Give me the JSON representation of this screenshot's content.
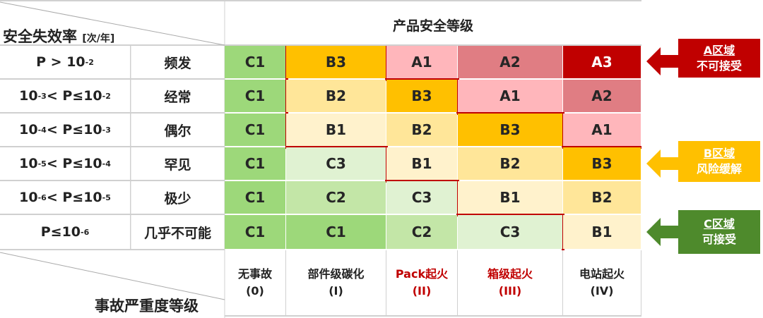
{
  "header": {
    "row_axis": "安全失效率",
    "row_unit": "[次/年]",
    "col_axis": "产品安全等级",
    "sev_axis": "事故严重度等级"
  },
  "rows": [
    {
      "range": [
        "P > 10",
        "-2",
        "",
        ""
      ],
      "label": "频发",
      "cells": [
        "C1",
        "B3",
        "A1",
        "A2",
        "A3"
      ]
    },
    {
      "range": [
        "10",
        "-3",
        " < P≤10",
        "-2"
      ],
      "label": "经常",
      "cells": [
        "C1",
        "B2",
        "B3",
        "A1",
        "A2"
      ]
    },
    {
      "range": [
        "10",
        "-4",
        " < P≤10",
        "-3"
      ],
      "label": "偶尔",
      "cells": [
        "C1",
        "B1",
        "B2",
        "B3",
        "A1"
      ]
    },
    {
      "range": [
        "10",
        "-5",
        " < P≤10",
        "-4"
      ],
      "label": "罕见",
      "cells": [
        "C1",
        "C3",
        "B1",
        "B2",
        "B3"
      ]
    },
    {
      "range": [
        "10",
        "-6",
        " < P≤10",
        "-5"
      ],
      "label": "极少",
      "cells": [
        "C1",
        "C2",
        "C3",
        "B1",
        "B2"
      ]
    },
    {
      "range": [
        "P≤10",
        "-6",
        "",
        ""
      ],
      "label": "几乎不可能",
      "cells": [
        "C1",
        "C1",
        "C2",
        "C3",
        "B1"
      ]
    }
  ],
  "severity": [
    {
      "name": "无事故",
      "level": "(0)",
      "highlight": false
    },
    {
      "name": "部件级碳化",
      "level": "(I)",
      "highlight": false
    },
    {
      "name": "Pack起火",
      "level": "(II)",
      "highlight": true
    },
    {
      "name": "箱级起火",
      "level": "(III)",
      "highlight": true
    },
    {
      "name": "电站起火",
      "level": "(IV)",
      "highlight": false
    }
  ],
  "zones": [
    {
      "title": "A区域",
      "desc": "不可接受",
      "color": "#c00000"
    },
    {
      "title": "B区域",
      "desc": "风险缓解",
      "color": "#ffc000"
    },
    {
      "title": "C区域",
      "desc": "可接受",
      "color": "#4e8a2c"
    }
  ],
  "colors": {
    "C1": "#9dd87a",
    "C2": "#c3e6a7",
    "C3": "#e0f2d2",
    "B1": "#fff2cc",
    "B2": "#ffe699",
    "B3": "#ffc000",
    "A1": "#ffb6bb",
    "A2": "#e07d83",
    "A3": "#c00000",
    "boundary": "#c00000"
  }
}
